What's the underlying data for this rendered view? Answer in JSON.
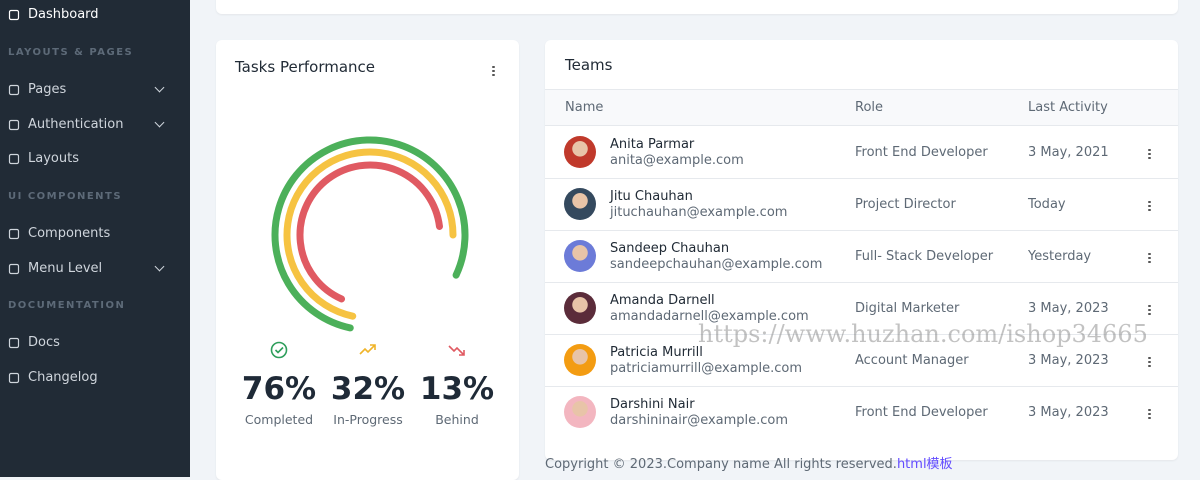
{
  "sidebar": {
    "sections": [
      {
        "items": [
          {
            "label": "Dashboard"
          }
        ]
      },
      {
        "heading": "LAYOUTS & PAGES",
        "items": [
          {
            "label": "Pages"
          },
          {
            "label": "Authentication"
          },
          {
            "label": "Layouts"
          }
        ]
      },
      {
        "heading": "UI COMPONENTS",
        "items": [
          {
            "label": "Components"
          },
          {
            "label": "Menu Level"
          }
        ]
      },
      {
        "heading": "DOCUMENTATION",
        "items": [
          {
            "label": "Docs"
          },
          {
            "label": "Changelog"
          }
        ]
      }
    ]
  },
  "tasks": {
    "title": "Tasks Performance",
    "stats": [
      {
        "value": "76%",
        "label": "Completed"
      },
      {
        "value": "32%",
        "label": "In-Progress"
      },
      {
        "value": "13%",
        "label": "Behind"
      }
    ]
  },
  "teams": {
    "title": "Teams",
    "columns": [
      "Name",
      "Role",
      "Last Activity"
    ],
    "rows": [
      {
        "name": "Anita Parmar",
        "email": "anita@example.com",
        "role": "Front End Developer",
        "last_activity": "3 May, 2021"
      },
      {
        "name": "Jitu Chauhan",
        "email": "jituchauhan@example.com",
        "role": "Project Director",
        "last_activity": "Today"
      },
      {
        "name": "Sandeep Chauhan",
        "email": "sandeepchauhan@example.com",
        "role": "Full- Stack Developer",
        "last_activity": "Yesterday"
      },
      {
        "name": "Amanda Darnell",
        "email": "amandadarnell@example.com",
        "role": "Digital Marketer",
        "last_activity": "3 May, 2023"
      },
      {
        "name": "Patricia Murrill",
        "email": "patriciamurrill@example.com",
        "role": "Account Manager",
        "last_activity": "3 May, 2023"
      },
      {
        "name": "Darshini Nair",
        "email": "darshininair@example.com",
        "role": "Front End Developer",
        "last_activity": "3 May, 2023"
      }
    ]
  },
  "footer": {
    "text": "Copyright © 2023.Company name All rights reserved.",
    "link": "html模板"
  },
  "watermark": "https://www.huzhan.com/ishop34665"
}
